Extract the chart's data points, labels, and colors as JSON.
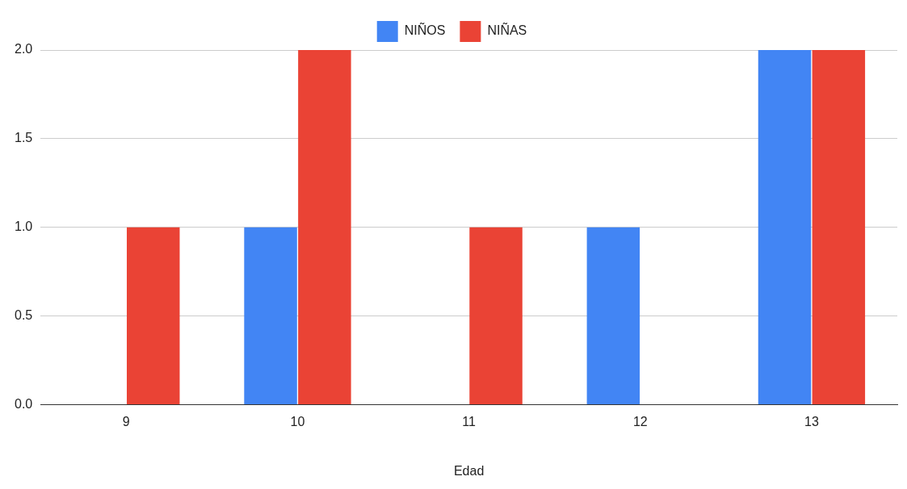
{
  "chart_data": {
    "type": "bar",
    "xlabel": "Edad",
    "categories": [
      "9",
      "10",
      "11",
      "12",
      "13"
    ],
    "series": [
      {
        "name": "NIÑOS",
        "color": "#4285f4",
        "values": [
          0,
          1,
          0,
          1,
          2
        ]
      },
      {
        "name": "NIÑAS",
        "color": "#ea4335",
        "values": [
          1,
          2,
          1,
          0,
          2
        ]
      }
    ],
    "ylim": [
      0,
      2
    ],
    "yticks": [
      {
        "value": 0,
        "label": "0.0"
      },
      {
        "value": 0.5,
        "label": "0.5"
      },
      {
        "value": 1,
        "label": "1.0"
      },
      {
        "value": 1.5,
        "label": "1.5"
      },
      {
        "value": 2,
        "label": "2.0"
      }
    ],
    "grid": "y",
    "legend": "top"
  }
}
